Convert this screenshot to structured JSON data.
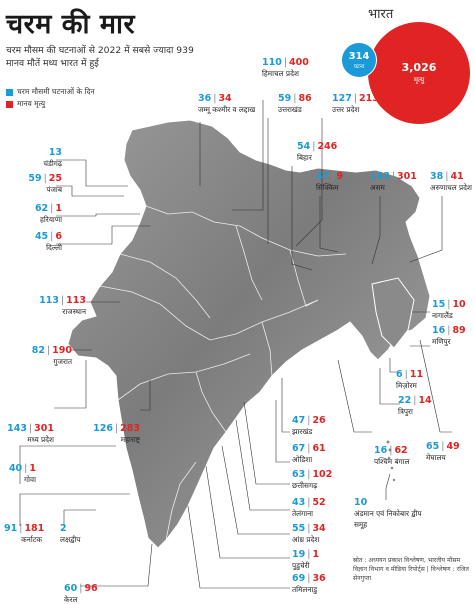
{
  "header": {
    "title": "चरम की मार",
    "subtitle": "चरम मौसम की घटनाओं से 2022 में सबसे ज्यादा 939 मानव मौतें मध्य भारत में हुई"
  },
  "legend": [
    {
      "label": "चरम मौसमी घटनाओं के दिन",
      "color": "#1a9ad6"
    },
    {
      "label": "मानव मृत्यु",
      "color": "#e02424"
    }
  ],
  "national": {
    "label": "भारत",
    "event_days": "314",
    "event_days_unit": "घटना",
    "deaths": "3,026",
    "deaths_unit": "मृत्यु"
  },
  "colors": {
    "days": "#1a9ad6",
    "deaths": "#e02424",
    "land": "#8c8c8c",
    "border": "#ffffff"
  },
  "states": [
    {
      "id": "himachal",
      "name": "हिमाचल प्रदेश",
      "days": "110",
      "deaths": "400"
    },
    {
      "id": "jammu",
      "name": "जम्मू कश्मीर व लद्दाख",
      "days": "36",
      "deaths": "34"
    },
    {
      "id": "uttarakhand",
      "name": "उत्तराखंड",
      "days": "59",
      "deaths": "86"
    },
    {
      "id": "up",
      "name": "उत्तर प्रदेश",
      "days": "127",
      "deaths": "213"
    },
    {
      "id": "bihar",
      "name": "बिहार",
      "days": "54",
      "deaths": "246"
    },
    {
      "id": "sikkim",
      "name": "सिक्किम",
      "days": "47",
      "deaths": "9"
    },
    {
      "id": "assam",
      "name": "असम",
      "days": "143",
      "deaths": "301"
    },
    {
      "id": "arunachal",
      "name": "अरुणाचल प्रदेश",
      "days": "38",
      "deaths": "41"
    },
    {
      "id": "chandigarh",
      "name": "चंडीगढ़",
      "days": "13",
      "deaths": ""
    },
    {
      "id": "punjab",
      "name": "पंजाब",
      "days": "59",
      "deaths": "25"
    },
    {
      "id": "haryana",
      "name": "हरियाणा",
      "days": "62",
      "deaths": "1"
    },
    {
      "id": "delhi",
      "name": "दिल्ली",
      "days": "45",
      "deaths": "6"
    },
    {
      "id": "rajasthan",
      "name": "राजस्थान",
      "days": "113",
      "deaths": "113"
    },
    {
      "id": "gujarat",
      "name": "गुजरात",
      "days": "82",
      "deaths": "190"
    },
    {
      "id": "nagaland",
      "name": "नागालैंड",
      "days": "15",
      "deaths": "10"
    },
    {
      "id": "manipur",
      "name": "मणिपुर",
      "days": "16",
      "deaths": "89"
    },
    {
      "id": "mizoram",
      "name": "मिज़ोरम",
      "days": "6",
      "deaths": "11"
    },
    {
      "id": "tripura",
      "name": "त्रिपुरा",
      "days": "22",
      "deaths": "14"
    },
    {
      "id": "mp",
      "name": "मध्य प्रदेश",
      "days": "143",
      "deaths": "301"
    },
    {
      "id": "maharashtra",
      "name": "महाराष्ट्र",
      "days": "126",
      "deaths": "283"
    },
    {
      "id": "jharkhand",
      "name": "झारखंड",
      "days": "47",
      "deaths": "26"
    },
    {
      "id": "odisha",
      "name": "ओडिशा",
      "days": "67",
      "deaths": "61"
    },
    {
      "id": "wb",
      "name": "पश्चिम बंगाल",
      "days": "16",
      "deaths": "62"
    },
    {
      "id": "meghalaya",
      "name": "मेघालय",
      "days": "65",
      "deaths": "49"
    },
    {
      "id": "goa",
      "name": "गोवा",
      "days": "40",
      "deaths": "1"
    },
    {
      "id": "chhattisgarh",
      "name": "छत्तीसगढ़",
      "days": "63",
      "deaths": "102"
    },
    {
      "id": "telangana",
      "name": "तेलंगाना",
      "days": "43",
      "deaths": "52"
    },
    {
      "id": "andaman",
      "name": "अंडमान एवं निकोबार द्वीप समूह",
      "days": "10",
      "deaths": ""
    },
    {
      "id": "karnataka",
      "name": "कर्नाटक",
      "days": "91",
      "deaths": "181"
    },
    {
      "id": "lakshadweep",
      "name": "लक्षद्वीप",
      "days": "2",
      "deaths": ""
    },
    {
      "id": "ap",
      "name": "आंध्र प्रदेश",
      "days": "55",
      "deaths": "34"
    },
    {
      "id": "puducherry",
      "name": "पुडुचेरी",
      "days": "19",
      "deaths": "1"
    },
    {
      "id": "tn",
      "name": "तमिलनाडु",
      "days": "69",
      "deaths": "36"
    },
    {
      "id": "kerala",
      "name": "केरल",
      "days": "60",
      "deaths": "96"
    }
  ],
  "source": "स्रोत : अध्ययन प्रकाश विश्लेषण, भारतीय मौसम विज्ञान विभाग व मीडिया रिपोर्ट्स | विश्लेषण : रजित सेनगुप्ता"
}
